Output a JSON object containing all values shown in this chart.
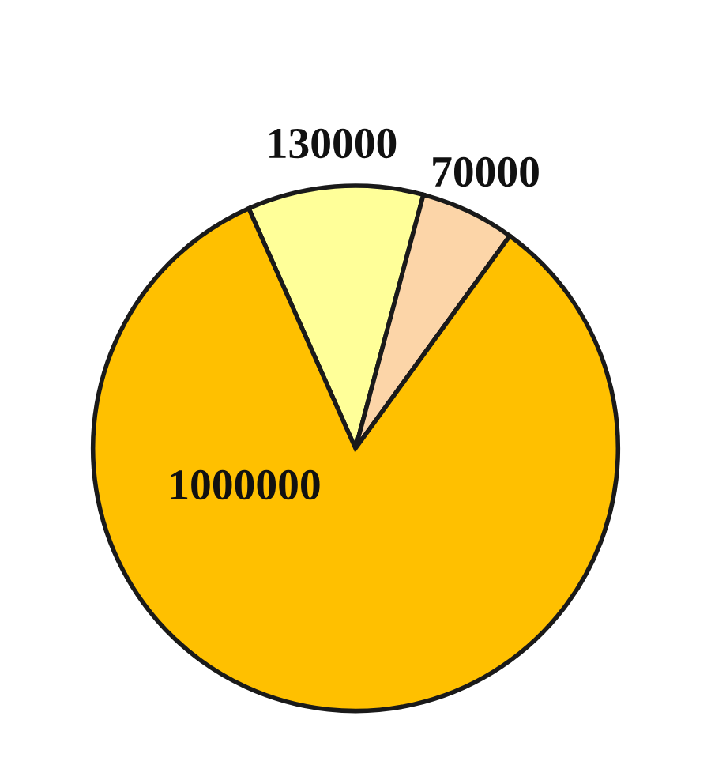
{
  "chart_data": {
    "type": "pie",
    "categories": [
      null,
      null,
      null
    ],
    "values": [
      130000,
      70000,
      1000000
    ],
    "colors": [
      "#ffff99",
      "#fcd5a8",
      "#ffc000"
    ],
    "data_labels": true
  }
}
